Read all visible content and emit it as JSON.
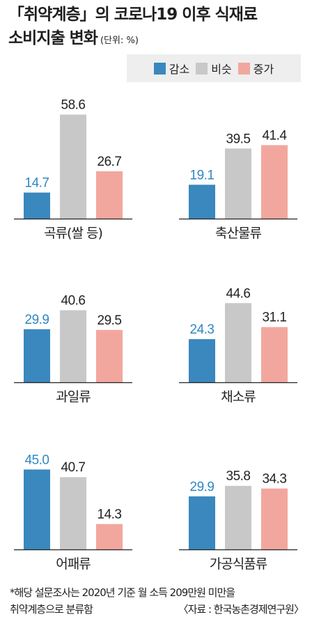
{
  "title": {
    "line1": "「취약계층」의 코로나19 이후 식재료",
    "line2": "소비지출 변화",
    "unit": "(단위: %)"
  },
  "legend": [
    {
      "name": "감소",
      "color": "#3a88bd"
    },
    {
      "name": "비슷",
      "color": "#c8c8c8"
    },
    {
      "name": "증가",
      "color": "#f2a79e"
    }
  ],
  "colors": {
    "decrease_label": "#2f87c4",
    "axis": "#222222"
  },
  "chart_data": [
    {
      "type": "bar",
      "category": "곡류(쌀 등)",
      "series_names": [
        "감소",
        "비슷",
        "증가"
      ],
      "values": [
        14.7,
        58.6,
        26.7
      ]
    },
    {
      "type": "bar",
      "category": "축산물류",
      "series_names": [
        "감소",
        "비슷",
        "증가"
      ],
      "values": [
        19.1,
        39.5,
        41.4
      ]
    },
    {
      "type": "bar",
      "category": "과일류",
      "series_names": [
        "감소",
        "비슷",
        "증가"
      ],
      "values": [
        29.9,
        40.6,
        29.5
      ]
    },
    {
      "type": "bar",
      "category": "채소류",
      "series_names": [
        "감소",
        "비슷",
        "증가"
      ],
      "values": [
        24.3,
        44.6,
        31.1
      ]
    },
    {
      "type": "bar",
      "category": "어패류",
      "series_names": [
        "감소",
        "비슷",
        "증가"
      ],
      "values": [
        45.0,
        40.7,
        14.3
      ]
    },
    {
      "type": "bar",
      "category": "가공식품류",
      "series_names": [
        "감소",
        "비슷",
        "증가"
      ],
      "values": [
        29.9,
        35.8,
        34.3
      ]
    }
  ],
  "footnote": {
    "line1": "*해당 설문조사는 2020년 기준 월 소득 209만원 미만을",
    "line2": "취약계층으로 분류함",
    "source": "〈자료 : 한국농촌경제연구원〉"
  }
}
